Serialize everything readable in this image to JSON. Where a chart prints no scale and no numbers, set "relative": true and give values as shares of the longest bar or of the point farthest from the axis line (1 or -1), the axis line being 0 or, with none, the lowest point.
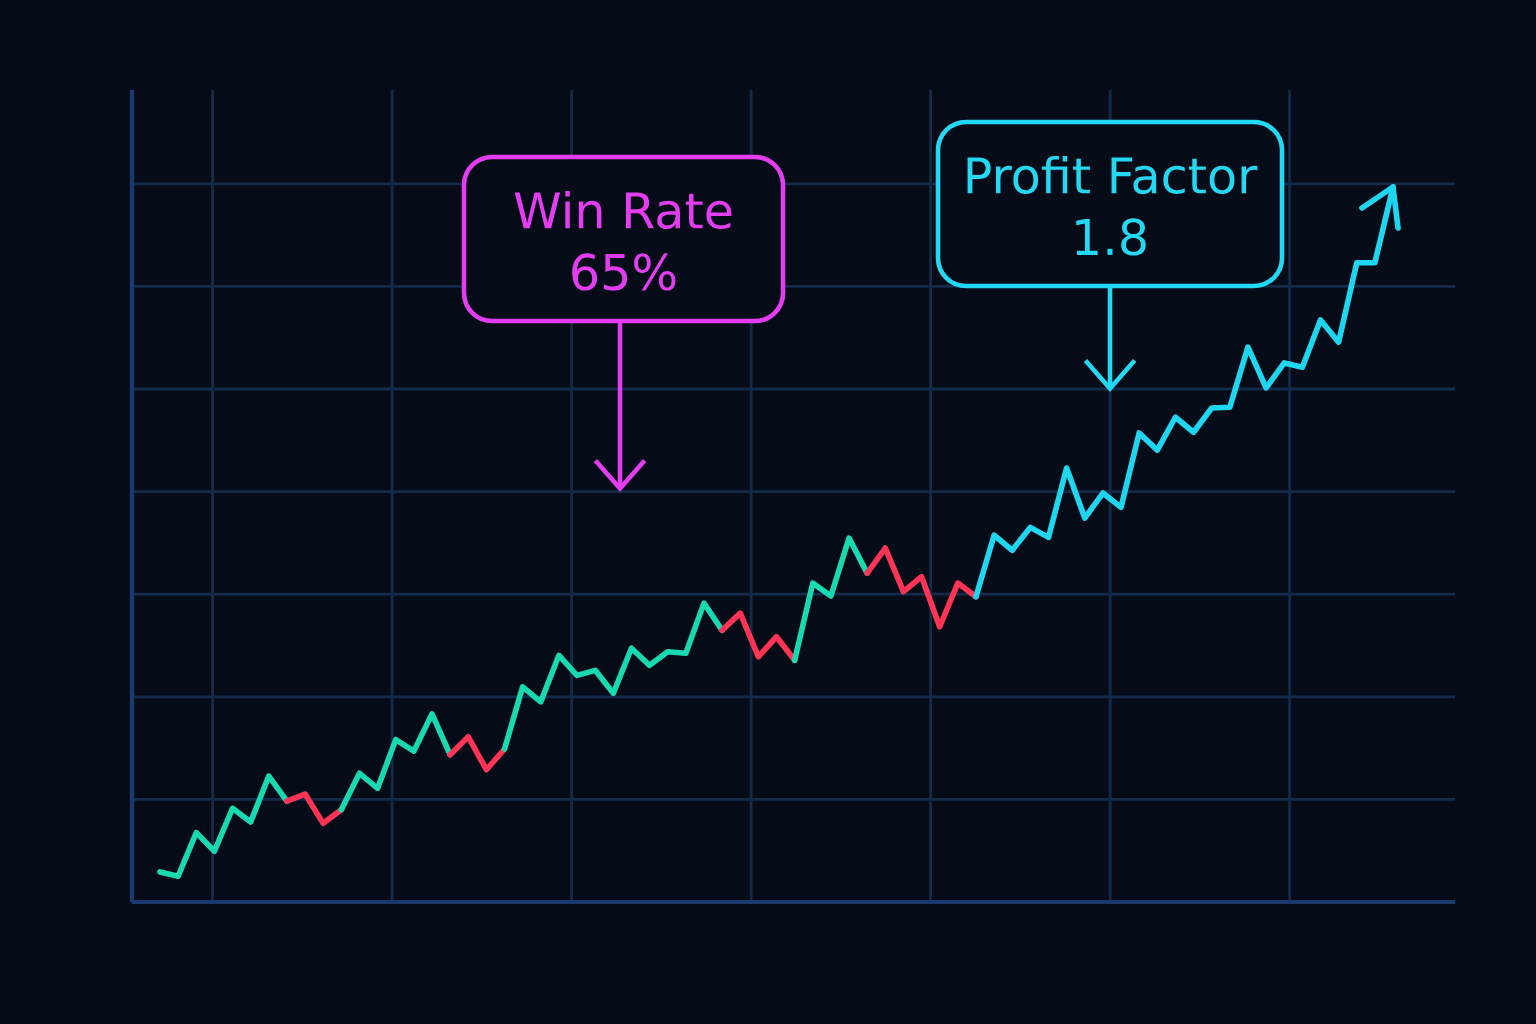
{
  "chart_data": {
    "type": "line",
    "relative": true,
    "grid": true,
    "categories": [
      null,
      null,
      null,
      null,
      null,
      null,
      null,
      null,
      null,
      null,
      null,
      null,
      null,
      null,
      null,
      null,
      null,
      null,
      null,
      null,
      null,
      null,
      null,
      null,
      null,
      null,
      null,
      null,
      null,
      null,
      null,
      null,
      null,
      null,
      null,
      null,
      null,
      null,
      null,
      null,
      null,
      null,
      null,
      null,
      null,
      null,
      null,
      null,
      null,
      null,
      null,
      null,
      null,
      null,
      null,
      null,
      null,
      null,
      null,
      null,
      null,
      null,
      null,
      null,
      null,
      null,
      null,
      null,
      null
    ],
    "series": [
      {
        "color": "#19d9b0",
        "values": [
          0.042,
          0.036,
          0.097,
          0.071,
          0.131,
          0.112,
          0.176,
          0.141,
          null,
          null,
          null,
          null,
          null,
          null,
          null,
          null,
          null,
          null,
          null,
          null,
          null,
          null,
          null,
          null,
          null,
          null,
          null,
          null,
          null,
          null,
          null,
          null,
          null,
          null,
          null,
          null,
          null,
          null,
          null,
          null,
          null,
          null,
          null,
          null,
          null,
          null,
          null,
          null,
          null,
          null,
          null,
          null,
          null,
          null,
          null,
          null,
          null,
          null,
          null,
          null,
          null,
          null,
          null,
          null,
          null,
          null,
          null,
          null,
          null
        ]
      },
      {
        "color": "#ff3355",
        "values": [
          null,
          null,
          null,
          null,
          null,
          null,
          null,
          0.141,
          0.151,
          0.11,
          0.129,
          null,
          null,
          null,
          null,
          null,
          null,
          null,
          null,
          null,
          null,
          null,
          null,
          null,
          null,
          null,
          null,
          null,
          null,
          null,
          null,
          null,
          null,
          null,
          null,
          null,
          null,
          null,
          null,
          null,
          null,
          null,
          null,
          null,
          null,
          null,
          null,
          null,
          null,
          null,
          null,
          null,
          null,
          null,
          null,
          null,
          null,
          null,
          null,
          null,
          null,
          null,
          null,
          null,
          null,
          null,
          null,
          null,
          null
        ]
      },
      {
        "color": "#19d9b0",
        "values": [
          null,
          null,
          null,
          null,
          null,
          null,
          null,
          null,
          null,
          null,
          0.129,
          0.18,
          0.159,
          0.227,
          0.211,
          0.263,
          0.206,
          null,
          null,
          null,
          null,
          null,
          null,
          null,
          null,
          null,
          null,
          null,
          null,
          null,
          null,
          null,
          null,
          null,
          null,
          null,
          null,
          null,
          null,
          null,
          null,
          null,
          null,
          null,
          null,
          null,
          null,
          null,
          null,
          null,
          null,
          null,
          null,
          null,
          null,
          null,
          null,
          null,
          null,
          null,
          null,
          null,
          null,
          null,
          null,
          null,
          null,
          null,
          null
        ]
      },
      {
        "color": "#ff3355",
        "values": [
          null,
          null,
          null,
          null,
          null,
          null,
          null,
          null,
          null,
          null,
          null,
          null,
          null,
          null,
          null,
          null,
          0.206,
          0.231,
          0.185,
          0.214,
          null,
          null,
          null,
          null,
          null,
          null,
          null,
          null,
          null,
          null,
          null,
          null,
          null,
          null,
          null,
          null,
          null,
          null,
          null,
          null,
          null,
          null,
          null,
          null,
          null,
          null,
          null,
          null,
          null,
          null,
          null,
          null,
          null,
          null,
          null,
          null,
          null,
          null,
          null,
          null,
          null,
          null,
          null,
          null,
          null,
          null,
          null,
          null,
          null
        ]
      },
      {
        "color": "#19d9b0",
        "values": [
          null,
          null,
          null,
          null,
          null,
          null,
          null,
          null,
          null,
          null,
          null,
          null,
          null,
          null,
          null,
          null,
          null,
          null,
          null,
          0.214,
          0.301,
          0.28,
          0.345,
          0.317,
          0.324,
          0.292,
          0.355,
          0.331,
          0.35,
          0.348,
          0.418,
          0.38,
          null,
          null,
          null,
          null,
          null,
          null,
          null,
          null,
          null,
          null,
          null,
          null,
          null,
          null,
          null,
          null,
          null,
          null,
          null,
          null,
          null,
          null,
          null,
          null,
          null,
          null,
          null,
          null,
          null,
          null,
          null,
          null,
          null,
          null,
          null,
          null,
          null
        ]
      },
      {
        "color": "#ff3355",
        "values": [
          null,
          null,
          null,
          null,
          null,
          null,
          null,
          null,
          null,
          null,
          null,
          null,
          null,
          null,
          null,
          null,
          null,
          null,
          null,
          null,
          null,
          null,
          null,
          null,
          null,
          null,
          null,
          null,
          null,
          null,
          null,
          0.38,
          0.404,
          0.343,
          0.371,
          0.338,
          null,
          null,
          null,
          null,
          null,
          null,
          null,
          null,
          null,
          null,
          null,
          null,
          null,
          null,
          null,
          null,
          null,
          null,
          null,
          null,
          null,
          null,
          null,
          null,
          null,
          null,
          null,
          null,
          null,
          null,
          null,
          null,
          null
        ]
      },
      {
        "color": "#19d9b0",
        "values": [
          null,
          null,
          null,
          null,
          null,
          null,
          null,
          null,
          null,
          null,
          null,
          null,
          null,
          null,
          null,
          null,
          null,
          null,
          null,
          null,
          null,
          null,
          null,
          null,
          null,
          null,
          null,
          null,
          null,
          null,
          null,
          null,
          null,
          null,
          null,
          0.338,
          0.446,
          0.428,
          0.509,
          0.46,
          null,
          null,
          null,
          null,
          null,
          null,
          null,
          null,
          null,
          null,
          null,
          null,
          null,
          null,
          null,
          null,
          null,
          null,
          null,
          null,
          null,
          null,
          null,
          null,
          null,
          null,
          null,
          null,
          null
        ]
      },
      {
        "color": "#ff3355",
        "values": [
          null,
          null,
          null,
          null,
          null,
          null,
          null,
          null,
          null,
          null,
          null,
          null,
          null,
          null,
          null,
          null,
          null,
          null,
          null,
          null,
          null,
          null,
          null,
          null,
          null,
          null,
          null,
          null,
          null,
          null,
          null,
          null,
          null,
          null,
          null,
          null,
          null,
          null,
          null,
          0.46,
          0.495,
          0.434,
          0.455,
          0.385,
          0.446,
          0.427,
          null,
          null,
          null,
          null,
          null,
          null,
          null,
          null,
          null,
          null,
          null,
          null,
          null,
          null,
          null,
          null,
          null,
          null,
          null,
          null,
          null,
          null,
          null
        ]
      },
      {
        "color": "#1fd6f0",
        "values": [
          null,
          null,
          null,
          null,
          null,
          null,
          null,
          null,
          null,
          null,
          null,
          null,
          null,
          null,
          null,
          null,
          null,
          null,
          null,
          null,
          null,
          null,
          null,
          null,
          null,
          null,
          null,
          null,
          null,
          null,
          null,
          null,
          null,
          null,
          null,
          null,
          null,
          null,
          null,
          null,
          null,
          null,
          null,
          null,
          null,
          0.427,
          0.513,
          0.492,
          0.524,
          0.51,
          0.607,
          0.537,
          0.572,
          0.552,
          0.656,
          0.632,
          0.678,
          0.657,
          0.691,
          0.692,
          0.776,
          0.719,
          0.754,
          0.748,
          0.814,
          0.783,
          0.894,
          0.894,
          1
        ]
      }
    ],
    "annotations": [
      "Win Rate",
      "65%",
      "Profit Factor",
      "1.8"
    ]
  }
}
